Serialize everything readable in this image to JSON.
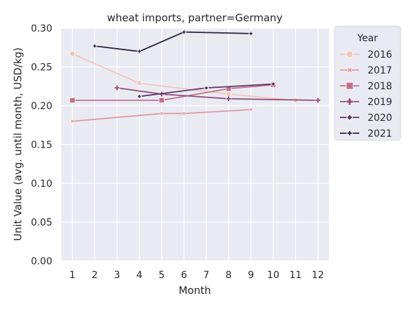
{
  "chart_data": {
    "type": "line",
    "title": "wheat imports, partner=Germany",
    "xlabel": "Month",
    "ylabel": "Unit Value (avg. until month, USD/kg)",
    "xlim": [
      0.5,
      12.5
    ],
    "ylim": [
      0.0,
      0.3
    ],
    "xticks": [
      "1",
      "2",
      "3",
      "4",
      "5",
      "6",
      "7",
      "8",
      "9",
      "10",
      "11",
      "12"
    ],
    "yticks": [
      "0.00",
      "0.05",
      "0.10",
      "0.15",
      "0.20",
      "0.25",
      "0.30"
    ],
    "grid": true,
    "legend_title": "Year",
    "legend_position": "outside-right",
    "series": [
      {
        "name": "2016",
        "color": "#efc8bd",
        "marker": "circle",
        "points": [
          [
            1,
            0.267
          ],
          [
            4,
            0.229
          ],
          [
            8,
            0.215
          ],
          [
            11,
            0.207
          ]
        ]
      },
      {
        "name": "2017",
        "color": "#dc9aa2",
        "marker": "x",
        "points": [
          [
            1,
            0.18
          ],
          [
            5,
            0.19
          ],
          [
            6,
            0.19
          ],
          [
            9,
            0.195
          ]
        ]
      },
      {
        "name": "2018",
        "color": "#c0718a",
        "marker": "square",
        "points": [
          [
            1,
            0.207
          ],
          [
            5,
            0.207
          ],
          [
            8,
            0.222
          ],
          [
            10,
            0.227
          ]
        ]
      },
      {
        "name": "2019",
        "color": "#8f4f7a",
        "marker": "plus",
        "points": [
          [
            3,
            0.223
          ],
          [
            5,
            0.215
          ],
          [
            8,
            0.209
          ],
          [
            12,
            0.207
          ]
        ]
      },
      {
        "name": "2020",
        "color": "#5e3668",
        "marker": "diamond",
        "points": [
          [
            4,
            0.212
          ],
          [
            7,
            0.223
          ],
          [
            10,
            0.228
          ]
        ]
      },
      {
        "name": "2021",
        "color": "#2c1e3e",
        "marker": "star",
        "points": [
          [
            2,
            0.277
          ],
          [
            4,
            0.27
          ],
          [
            6,
            0.295
          ],
          [
            9,
            0.293
          ]
        ]
      }
    ]
  }
}
